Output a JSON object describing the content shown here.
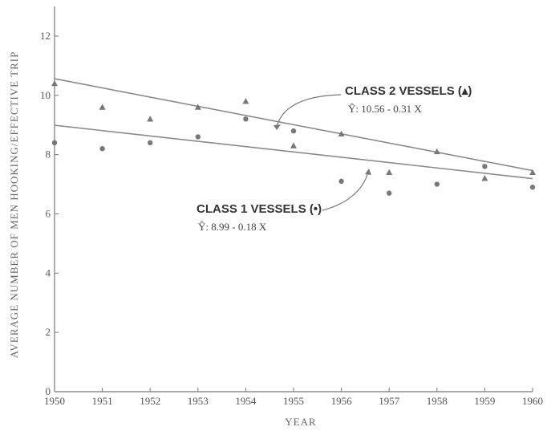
{
  "chart_data": {
    "type": "scatter",
    "title": "",
    "xlabel": "YEAR",
    "ylabel": "AVERAGE NUMBER OF MEN HOOKING/EFFECTIVE TRIP",
    "xlim": [
      1950,
      1960
    ],
    "ylim": [
      0,
      13
    ],
    "x_ticks": [
      "1950",
      "1951",
      "1952",
      "1953",
      "1954",
      "1955",
      "1956",
      "1957",
      "1958",
      "1959",
      "1960"
    ],
    "y_ticks": [
      "0",
      "2",
      "4",
      "6",
      "8",
      "10",
      "12"
    ],
    "grid": false,
    "series": [
      {
        "name": "CLASS 1 VESSELS (•)",
        "marker": "circle",
        "equation": "Ŷ: 8.99 - 0.18 X",
        "fit": {
          "intercept": 8.99,
          "slope": -0.18,
          "x0": 1950
        },
        "x": [
          1950,
          1951,
          1952,
          1953,
          1954,
          1955,
          1956,
          1957,
          1958,
          1959,
          1960
        ],
        "y": [
          8.4,
          8.2,
          8.4,
          8.6,
          9.2,
          8.8,
          7.1,
          6.7,
          7.0,
          7.6,
          6.9
        ]
      },
      {
        "name": "CLASS 2 VESSELS (▴)",
        "marker": "triangle",
        "equation": "Ŷ: 10.56 - 0.31 X",
        "fit": {
          "intercept": 10.56,
          "slope": -0.31,
          "x0": 1950
        },
        "x": [
          1950,
          1951,
          1952,
          1953,
          1954,
          1955,
          1956,
          1957,
          1958,
          1959,
          1960
        ],
        "y": [
          10.4,
          9.6,
          9.2,
          9.6,
          9.8,
          8.3,
          8.7,
          7.4,
          8.1,
          7.2,
          7.4
        ]
      }
    ],
    "colors": {
      "line": "#8a8a8a",
      "marker": "#777777",
      "axis": "#777777"
    }
  }
}
